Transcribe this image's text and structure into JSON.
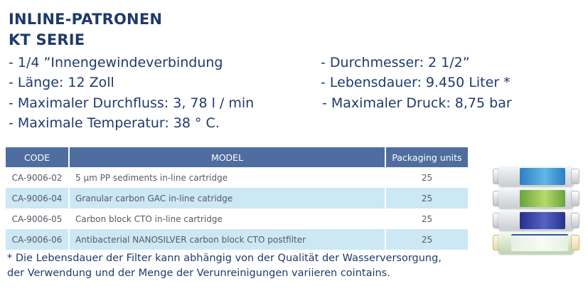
{
  "header": {
    "title_line1": "INLINE-PATRONEN",
    "title_line2": "KT SERIE"
  },
  "specs": {
    "thread": "- 1/4 ”Innengewindeverbindung",
    "diameter": "- Durchmesser: 2 1/2”",
    "length": "- Länge: 12 Zoll",
    "lifetime": "- Lebensdauer: 9.450 Liter *",
    "flow": "- Maximaler Durchfluss: 3, 78 l / min",
    "pressure": "- Maximaler Druck: 8,75 bar",
    "temperature": "- Maximale Temperatur: 38 ° C."
  },
  "table": {
    "headers": [
      "CODE",
      "MODEL",
      "Packaging units"
    ],
    "rows": [
      {
        "code": "CA-9006-02",
        "model": "5 µm PP sediments in-line cartridge",
        "units": "25"
      },
      {
        "code": "CA-9006-04",
        "model": "Granular carbon GAC in-line catridge",
        "units": "25"
      },
      {
        "code": "CA-9006-05",
        "model": "Carbon block CTO in-line cartridge",
        "units": "25"
      },
      {
        "code": "CA-9006-06",
        "model": "Antibacterial NANOSILVER carbon block CTO postfilter",
        "units": "25"
      }
    ]
  },
  "footnote": {
    "line1": "* Die Lebensdauer der Filter kann abhängig von der Qualität der Wasserversorgung,",
    "line2": "der Verwendung und der Menge der Verunreinigungen variieren cointains."
  },
  "colors": {
    "title": "#1f3a6b",
    "table_header": "#4f6e9f",
    "row_alt": "#cce8f4"
  }
}
